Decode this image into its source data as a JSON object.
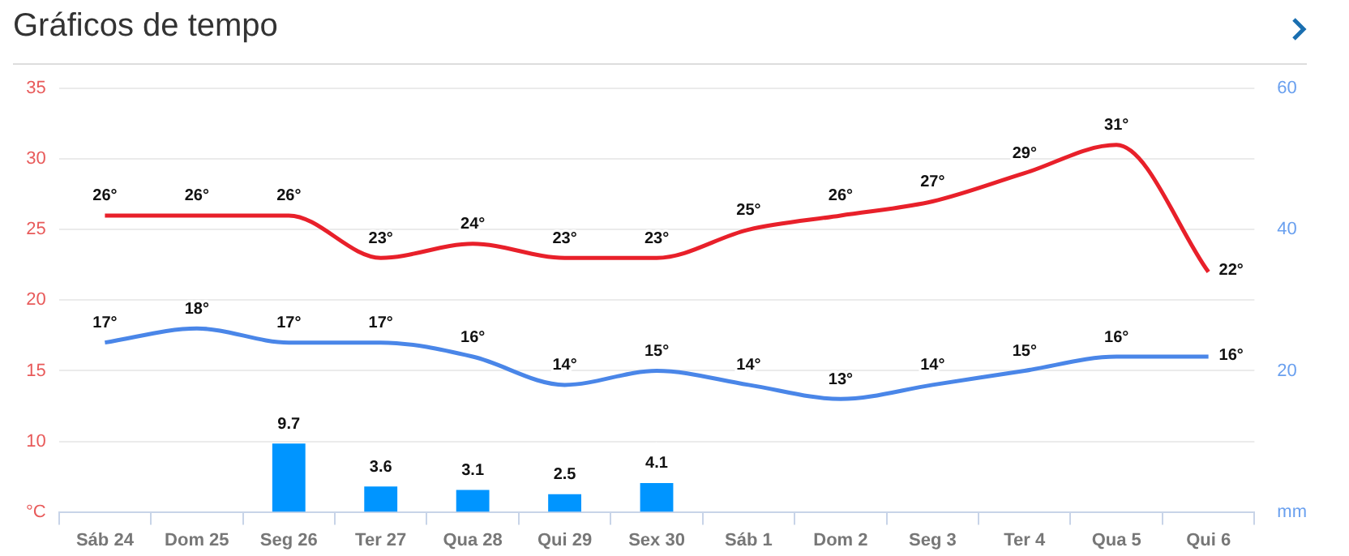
{
  "chart_data": {
    "type": "line",
    "title": "Gráficos de tempo",
    "categories": [
      "Sáb 24",
      "Dom 25",
      "Seg 26",
      "Ter 27",
      "Qua 28",
      "Qui 29",
      "Sex 30",
      "Sáb 1",
      "Dom 2",
      "Seg 3",
      "Ter 4",
      "Qua 5",
      "Qui 6"
    ],
    "series": [
      {
        "color": "#e8202a",
        "values": [
          26,
          26,
          26,
          23,
          24,
          23,
          23,
          25,
          26,
          27,
          29,
          31,
          22
        ],
        "value_labels": [
          "26°",
          "26°",
          "26°",
          "23°",
          "24°",
          "23°",
          "23°",
          "25°",
          "26°",
          "27°",
          "29°",
          "31°",
          "22°"
        ]
      },
      {
        "color": "#4a86e8",
        "values": [
          17,
          18,
          17,
          17,
          16,
          14,
          15,
          14,
          13,
          14,
          15,
          16,
          16
        ],
        "value_labels": [
          "17°",
          "18°",
          "17°",
          "17°",
          "16°",
          "14°",
          "15°",
          "14°",
          "13°",
          "14°",
          "15°",
          "16°",
          "16°"
        ]
      },
      {
        "type": "bar",
        "axis": "y2",
        "color": "#0095ff",
        "values": [
          null,
          null,
          9.7,
          3.6,
          3.1,
          2.5,
          4.1,
          null,
          null,
          null,
          null,
          null,
          null
        ],
        "value_labels": [
          null,
          null,
          "9.7",
          "3.6",
          "3.1",
          "2.5",
          "4.1",
          null,
          null,
          null,
          null,
          null,
          null
        ]
      }
    ],
    "ylim": [
      5,
      35
    ],
    "yticks": [
      {
        "value": 5,
        "label": "°C"
      },
      10,
      15,
      20,
      25,
      30,
      35
    ],
    "y2lim": [
      0,
      60
    ],
    "y2ticks": [
      {
        "value": 0,
        "label": "mm"
      },
      20,
      40,
      60
    ],
    "grid": "y",
    "legend": false,
    "marker": "none",
    "line_style": "solid"
  }
}
